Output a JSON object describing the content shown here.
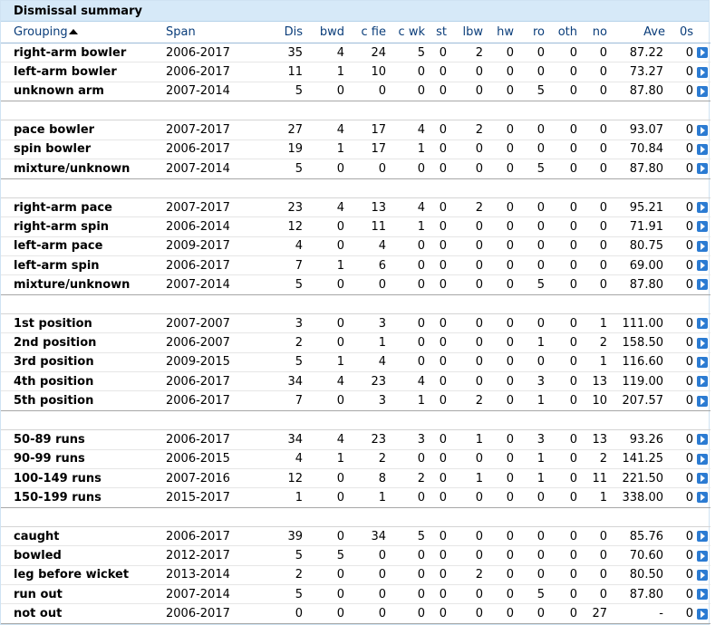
{
  "title": "Dismissal summary",
  "headers": {
    "grouping": "Grouping",
    "span": "Span",
    "dis": "Dis",
    "bwd": "bwd",
    "cfie": "c fie",
    "cwk": "c wk",
    "st": "st",
    "lbw": "lbw",
    "hw": "hw",
    "ro": "ro",
    "oth": "oth",
    "no": "no",
    "ave": "Ave",
    "zeros": "0s"
  },
  "groups": [
    {
      "rows": [
        {
          "grouping": "right-arm bowler",
          "span": "2006-2017",
          "dis": "35",
          "bwd": "4",
          "cfie": "24",
          "cwk": "5",
          "st": "0",
          "lbw": "2",
          "hw": "0",
          "ro": "0",
          "oth": "0",
          "no": "0",
          "ave": "87.22",
          "zeros": "0"
        },
        {
          "grouping": "left-arm bowler",
          "span": "2006-2017",
          "dis": "11",
          "bwd": "1",
          "cfie": "10",
          "cwk": "0",
          "st": "0",
          "lbw": "0",
          "hw": "0",
          "ro": "0",
          "oth": "0",
          "no": "0",
          "ave": "73.27",
          "zeros": "0"
        },
        {
          "grouping": "unknown arm",
          "span": "2007-2014",
          "dis": "5",
          "bwd": "0",
          "cfie": "0",
          "cwk": "0",
          "st": "0",
          "lbw": "0",
          "hw": "0",
          "ro": "5",
          "oth": "0",
          "no": "0",
          "ave": "87.80",
          "zeros": "0"
        }
      ]
    },
    {
      "rows": [
        {
          "grouping": "pace bowler",
          "span": "2007-2017",
          "dis": "27",
          "bwd": "4",
          "cfie": "17",
          "cwk": "4",
          "st": "0",
          "lbw": "2",
          "hw": "0",
          "ro": "0",
          "oth": "0",
          "no": "0",
          "ave": "93.07",
          "zeros": "0"
        },
        {
          "grouping": "spin bowler",
          "span": "2006-2017",
          "dis": "19",
          "bwd": "1",
          "cfie": "17",
          "cwk": "1",
          "st": "0",
          "lbw": "0",
          "hw": "0",
          "ro": "0",
          "oth": "0",
          "no": "0",
          "ave": "70.84",
          "zeros": "0"
        },
        {
          "grouping": "mixture/unknown",
          "span": "2007-2014",
          "dis": "5",
          "bwd": "0",
          "cfie": "0",
          "cwk": "0",
          "st": "0",
          "lbw": "0",
          "hw": "0",
          "ro": "5",
          "oth": "0",
          "no": "0",
          "ave": "87.80",
          "zeros": "0"
        }
      ]
    },
    {
      "rows": [
        {
          "grouping": "right-arm pace",
          "span": "2007-2017",
          "dis": "23",
          "bwd": "4",
          "cfie": "13",
          "cwk": "4",
          "st": "0",
          "lbw": "2",
          "hw": "0",
          "ro": "0",
          "oth": "0",
          "no": "0",
          "ave": "95.21",
          "zeros": "0"
        },
        {
          "grouping": "right-arm spin",
          "span": "2006-2014",
          "dis": "12",
          "bwd": "0",
          "cfie": "11",
          "cwk": "1",
          "st": "0",
          "lbw": "0",
          "hw": "0",
          "ro": "0",
          "oth": "0",
          "no": "0",
          "ave": "71.91",
          "zeros": "0"
        },
        {
          "grouping": "left-arm pace",
          "span": "2009-2017",
          "dis": "4",
          "bwd": "0",
          "cfie": "4",
          "cwk": "0",
          "st": "0",
          "lbw": "0",
          "hw": "0",
          "ro": "0",
          "oth": "0",
          "no": "0",
          "ave": "80.75",
          "zeros": "0"
        },
        {
          "grouping": "left-arm spin",
          "span": "2006-2017",
          "dis": "7",
          "bwd": "1",
          "cfie": "6",
          "cwk": "0",
          "st": "0",
          "lbw": "0",
          "hw": "0",
          "ro": "0",
          "oth": "0",
          "no": "0",
          "ave": "69.00",
          "zeros": "0"
        },
        {
          "grouping": "mixture/unknown",
          "span": "2007-2014",
          "dis": "5",
          "bwd": "0",
          "cfie": "0",
          "cwk": "0",
          "st": "0",
          "lbw": "0",
          "hw": "0",
          "ro": "5",
          "oth": "0",
          "no": "0",
          "ave": "87.80",
          "zeros": "0"
        }
      ]
    },
    {
      "rows": [
        {
          "grouping": "1st position",
          "span": "2007-2007",
          "dis": "3",
          "bwd": "0",
          "cfie": "3",
          "cwk": "0",
          "st": "0",
          "lbw": "0",
          "hw": "0",
          "ro": "0",
          "oth": "0",
          "no": "1",
          "ave": "111.00",
          "zeros": "0"
        },
        {
          "grouping": "2nd position",
          "span": "2006-2007",
          "dis": "2",
          "bwd": "0",
          "cfie": "1",
          "cwk": "0",
          "st": "0",
          "lbw": "0",
          "hw": "0",
          "ro": "1",
          "oth": "0",
          "no": "2",
          "ave": "158.50",
          "zeros": "0"
        },
        {
          "grouping": "3rd position",
          "span": "2009-2015",
          "dis": "5",
          "bwd": "1",
          "cfie": "4",
          "cwk": "0",
          "st": "0",
          "lbw": "0",
          "hw": "0",
          "ro": "0",
          "oth": "0",
          "no": "1",
          "ave": "116.60",
          "zeros": "0"
        },
        {
          "grouping": "4th position",
          "span": "2006-2017",
          "dis": "34",
          "bwd": "4",
          "cfie": "23",
          "cwk": "4",
          "st": "0",
          "lbw": "0",
          "hw": "0",
          "ro": "3",
          "oth": "0",
          "no": "13",
          "ave": "119.00",
          "zeros": "0"
        },
        {
          "grouping": "5th position",
          "span": "2006-2017",
          "dis": "7",
          "bwd": "0",
          "cfie": "3",
          "cwk": "1",
          "st": "0",
          "lbw": "2",
          "hw": "0",
          "ro": "1",
          "oth": "0",
          "no": "10",
          "ave": "207.57",
          "zeros": "0"
        }
      ]
    },
    {
      "rows": [
        {
          "grouping": "50-89 runs",
          "span": "2006-2017",
          "dis": "34",
          "bwd": "4",
          "cfie": "23",
          "cwk": "3",
          "st": "0",
          "lbw": "1",
          "hw": "0",
          "ro": "3",
          "oth": "0",
          "no": "13",
          "ave": "93.26",
          "zeros": "0"
        },
        {
          "grouping": "90-99 runs",
          "span": "2006-2015",
          "dis": "4",
          "bwd": "1",
          "cfie": "2",
          "cwk": "0",
          "st": "0",
          "lbw": "0",
          "hw": "0",
          "ro": "1",
          "oth": "0",
          "no": "2",
          "ave": "141.25",
          "zeros": "0"
        },
        {
          "grouping": "100-149 runs",
          "span": "2007-2016",
          "dis": "12",
          "bwd": "0",
          "cfie": "8",
          "cwk": "2",
          "st": "0",
          "lbw": "1",
          "hw": "0",
          "ro": "1",
          "oth": "0",
          "no": "11",
          "ave": "221.50",
          "zeros": "0"
        },
        {
          "grouping": "150-199 runs",
          "span": "2015-2017",
          "dis": "1",
          "bwd": "0",
          "cfie": "1",
          "cwk": "0",
          "st": "0",
          "lbw": "0",
          "hw": "0",
          "ro": "0",
          "oth": "0",
          "no": "1",
          "ave": "338.00",
          "zeros": "0"
        }
      ]
    },
    {
      "rows": [
        {
          "grouping": "caught",
          "span": "2006-2017",
          "dis": "39",
          "bwd": "0",
          "cfie": "34",
          "cwk": "5",
          "st": "0",
          "lbw": "0",
          "hw": "0",
          "ro": "0",
          "oth": "0",
          "no": "0",
          "ave": "85.76",
          "zeros": "0"
        },
        {
          "grouping": "bowled",
          "span": "2012-2017",
          "dis": "5",
          "bwd": "5",
          "cfie": "0",
          "cwk": "0",
          "st": "0",
          "lbw": "0",
          "hw": "0",
          "ro": "0",
          "oth": "0",
          "no": "0",
          "ave": "70.60",
          "zeros": "0"
        },
        {
          "grouping": "leg before wicket",
          "span": "2013-2014",
          "dis": "2",
          "bwd": "0",
          "cfie": "0",
          "cwk": "0",
          "st": "0",
          "lbw": "2",
          "hw": "0",
          "ro": "0",
          "oth": "0",
          "no": "0",
          "ave": "80.50",
          "zeros": "0"
        },
        {
          "grouping": "run out",
          "span": "2007-2014",
          "dis": "5",
          "bwd": "0",
          "cfie": "0",
          "cwk": "0",
          "st": "0",
          "lbw": "0",
          "hw": "0",
          "ro": "5",
          "oth": "0",
          "no": "0",
          "ave": "87.80",
          "zeros": "0"
        },
        {
          "grouping": "not out",
          "span": "2006-2017",
          "dis": "0",
          "bwd": "0",
          "cfie": "0",
          "cwk": "0",
          "st": "0",
          "lbw": "0",
          "hw": "0",
          "ro": "0",
          "oth": "0",
          "no": "27",
          "ave": "-",
          "zeros": "0"
        }
      ]
    }
  ],
  "icons": {
    "sort": "sort-ascending-icon",
    "row_action": "play-arrow-icon"
  },
  "colors": {
    "header_bg": "#d6e9f8",
    "header_text": "#0a3d7a",
    "button": "#2b7bd2"
  }
}
